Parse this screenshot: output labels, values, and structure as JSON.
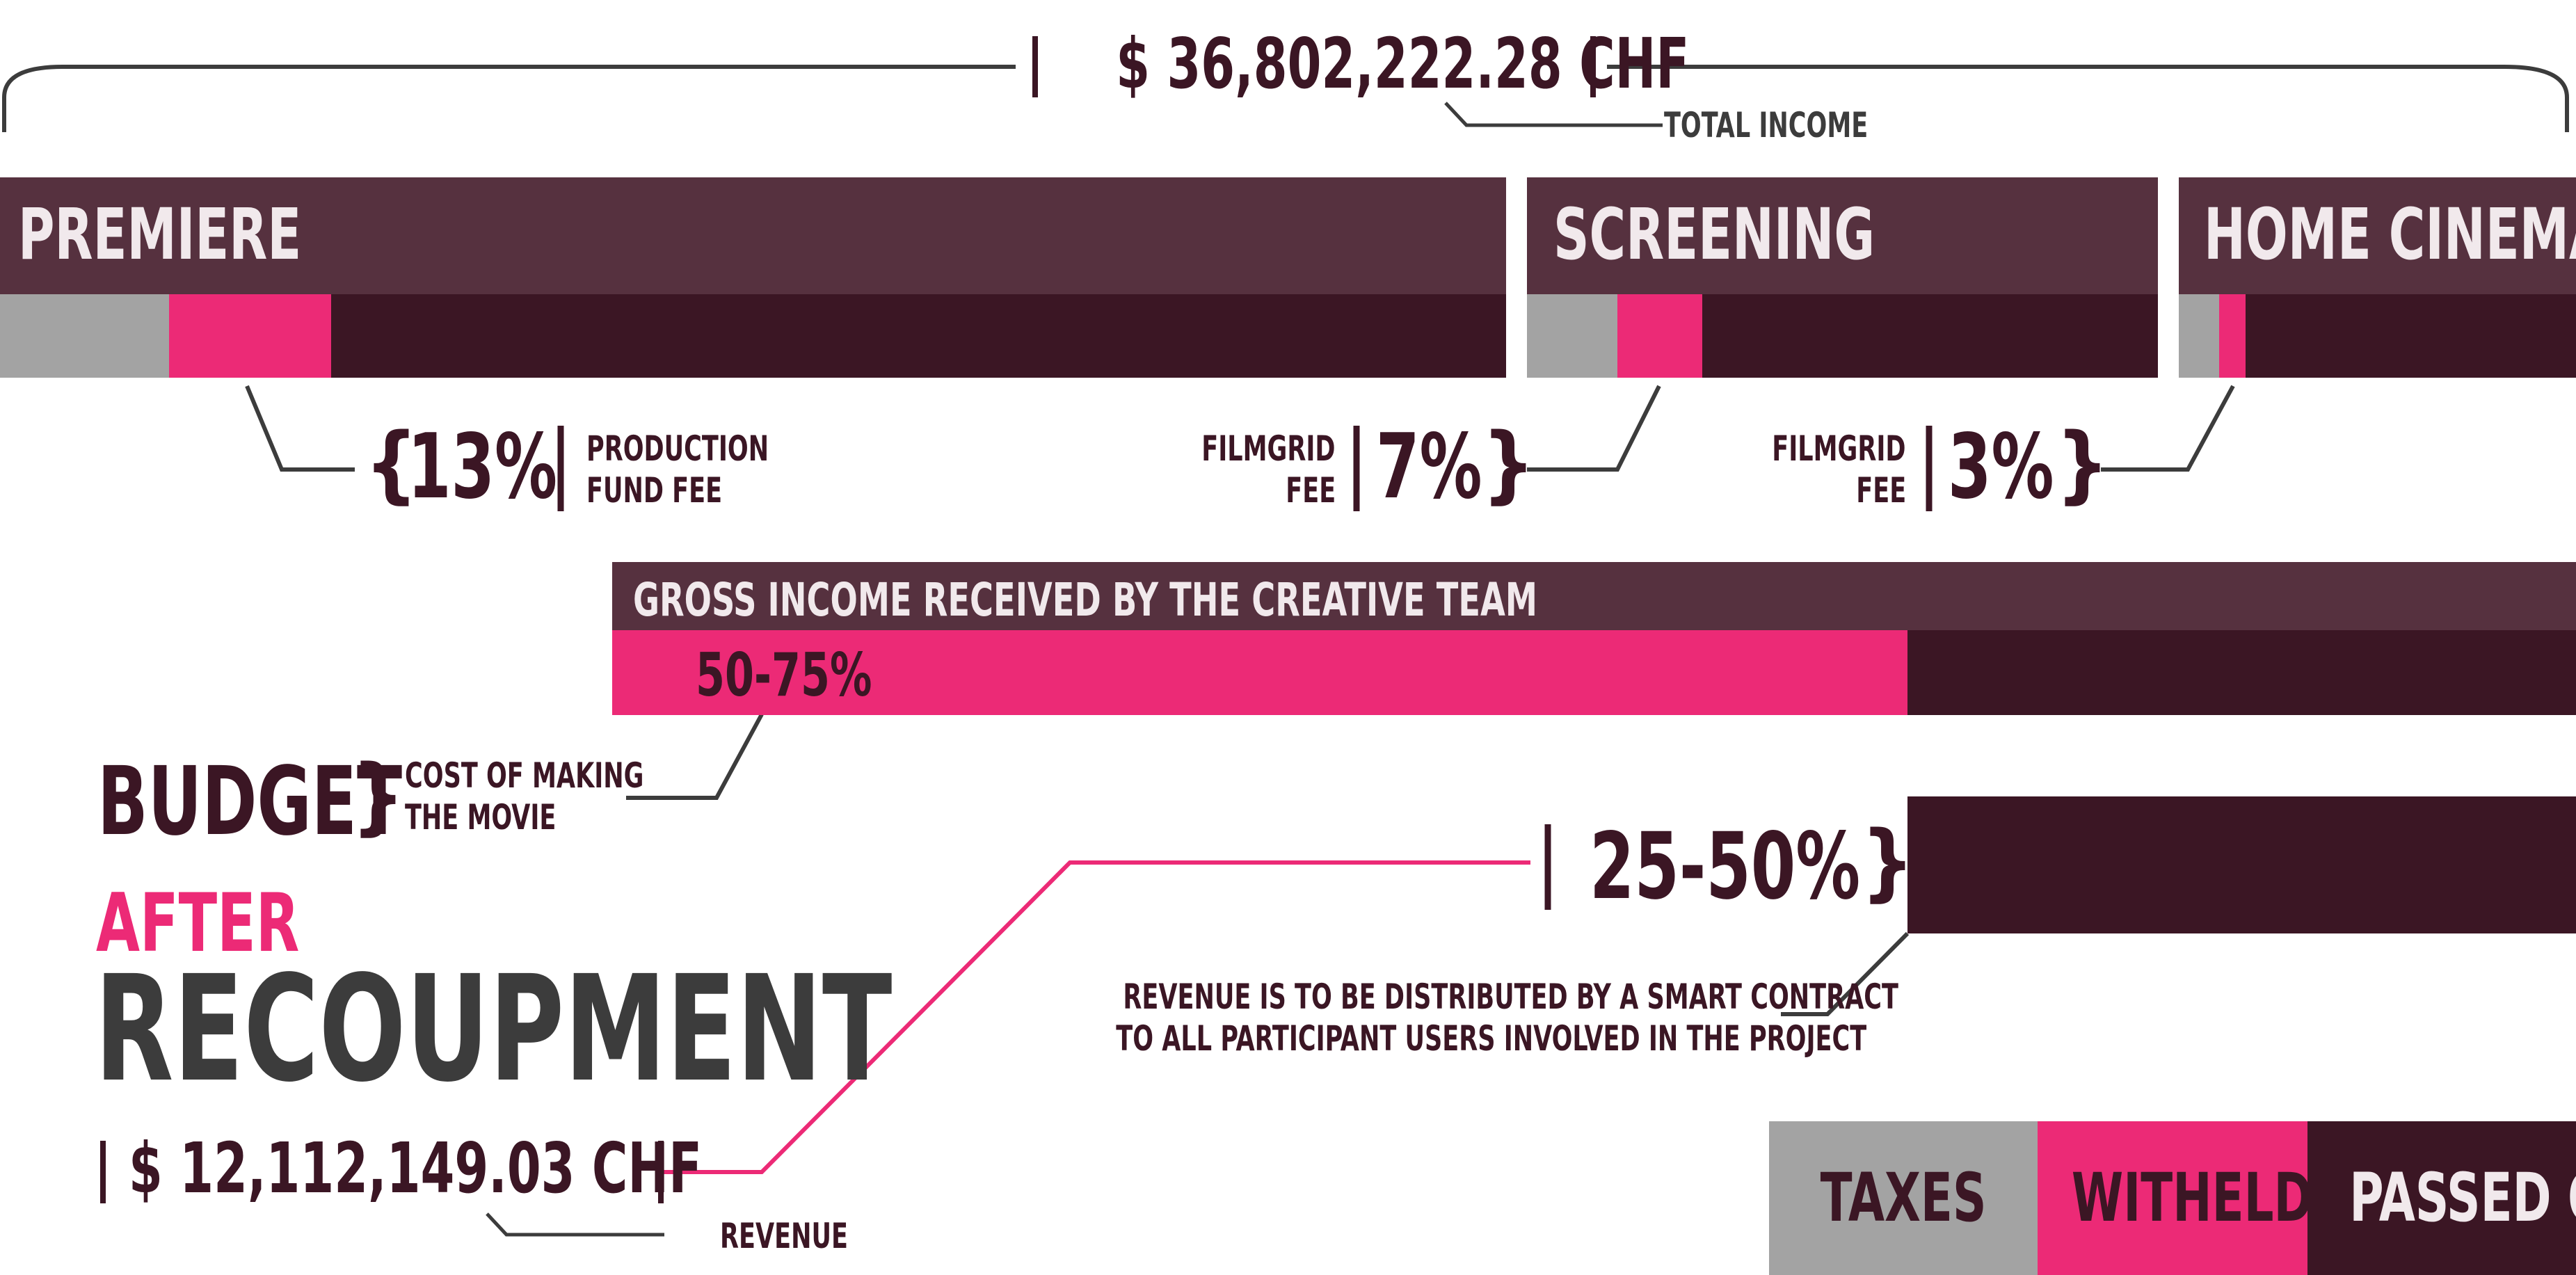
{
  "total": {
    "amount": "$ 36,802,222.28 CHF",
    "label": "TOTAL INCOME"
  },
  "channels": [
    {
      "name": "PREMIERE"
    },
    {
      "name": "SCREENING"
    },
    {
      "name": "HOME CINEMA"
    }
  ],
  "fees": {
    "production": {
      "pct": "13%",
      "label_line1": "PRODUCTION",
      "label_line2": "FUND FEE"
    },
    "screening": {
      "pct": "7%",
      "label_line1": "FILMGRID",
      "label_line2": "FEE"
    },
    "home": {
      "pct": "3%",
      "label_line1": "FILMGRID",
      "label_line2": "FEE"
    }
  },
  "gross": {
    "title": "GROSS INCOME RECEIVED BY THE CREATIVE TEAM",
    "pct": "50-75%"
  },
  "budget": {
    "title": "BUDGET",
    "note_line1": "COST OF MAKING",
    "note_line2": "THE MOVIE"
  },
  "distribution": {
    "pct": "25-50%",
    "note_line1": "REVENUE IS TO BE DISTRIBUTED BY A SMART CONTRACT",
    "note_line2": "TO ALL PARTICIPANT USERS INVOLVED IN THE PROJECT"
  },
  "after": {
    "line1": "AFTER",
    "line2": "RECOUPMENT"
  },
  "revenue": {
    "amount": "$ 12,112,149.03 CHF",
    "label": "REVENUE"
  },
  "legend": [
    {
      "label": "TAXES"
    },
    {
      "label": "WITHELD"
    },
    {
      "label": "PASSED ON"
    }
  ],
  "colors": {
    "plum": "#56313f",
    "dark": "#3b1624",
    "pink": "#ec2a76",
    "gray": "#a3a3a3",
    "text_dark": "#3b1624",
    "text_gray": "#3c3c3c",
    "white_text": "#f1e9ec"
  }
}
